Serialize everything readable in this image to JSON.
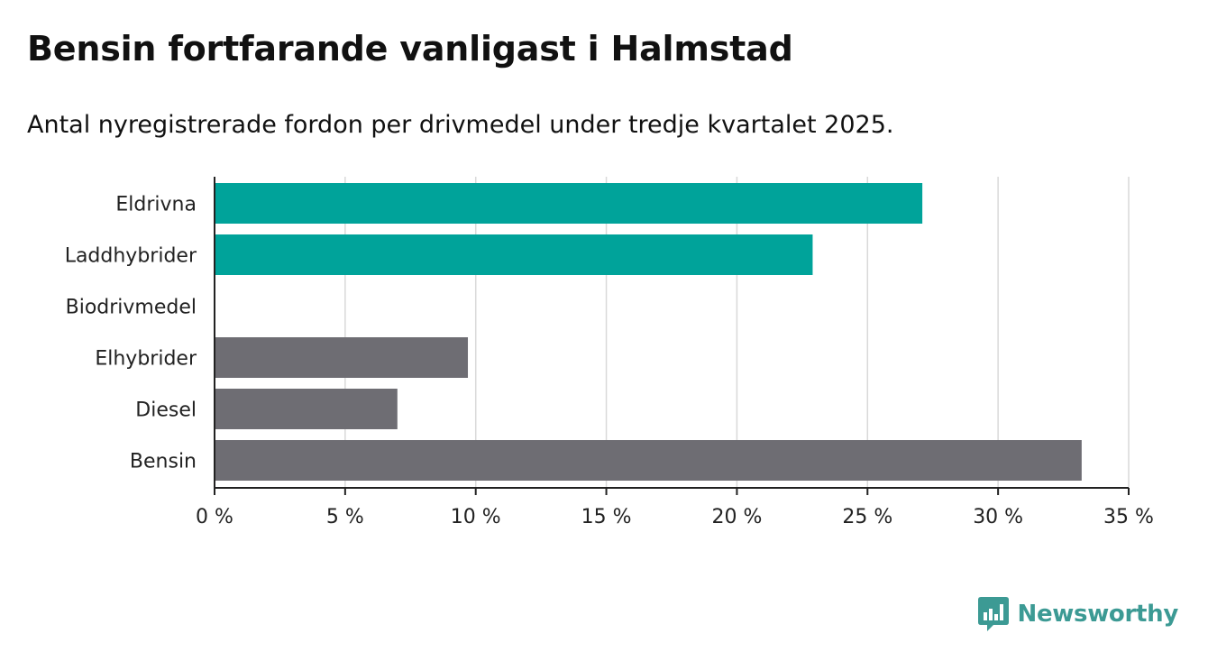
{
  "title": "Bensin fortfarande vanligast i Halmstad",
  "subtitle": "Antal nyregistrerade fordon per drivmedel under tredje kvartalet 2025.",
  "brand": {
    "name": "Newsworthy",
    "icon": "newsworthy-logo-icon",
    "color": "#3c9a94"
  },
  "colors": {
    "highlight": "#00a39a",
    "default": "#6e6d73",
    "grid": "#d9d9d9",
    "axis": "#222222"
  },
  "chart_data": {
    "type": "bar",
    "orientation": "horizontal",
    "categories": [
      "Eldrivna",
      "Laddhybrider",
      "Biodrivmedel",
      "Elhybrider",
      "Diesel",
      "Bensin"
    ],
    "values": [
      27.1,
      22.9,
      0,
      9.7,
      7.0,
      33.2
    ],
    "highlighted": [
      true,
      true,
      false,
      false,
      false,
      false
    ],
    "unit": "%",
    "xlim": [
      0,
      35
    ],
    "xticks": [
      0,
      5,
      10,
      15,
      20,
      25,
      30,
      35
    ],
    "xtick_labels": [
      "0 %",
      "5 %",
      "10 %",
      "15 %",
      "20 %",
      "25 %",
      "30 %",
      "35 %"
    ],
    "grid": true
  }
}
